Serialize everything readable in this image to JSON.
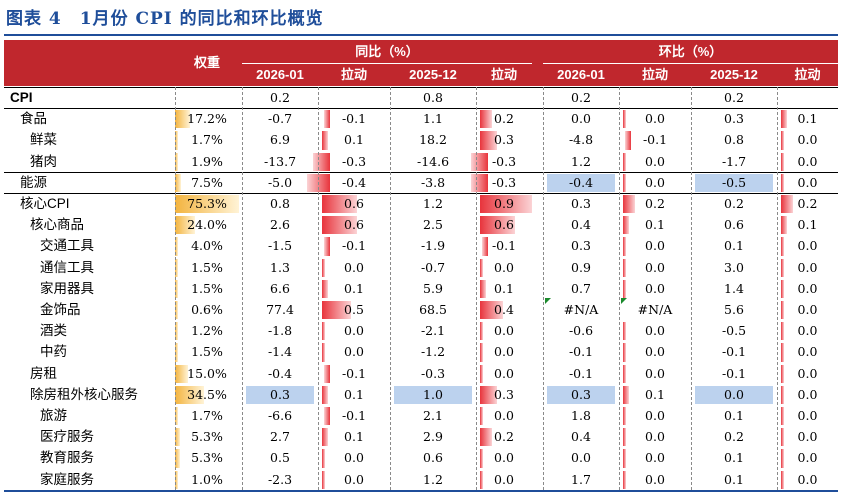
{
  "title": "图表 4　1月份 CPI 的同比和环比概览",
  "header": {
    "weight": "权重",
    "yoy_group": "同比（%）",
    "mom_group": "环比（%）",
    "period1": "2026-01",
    "period2": "2025-12",
    "pull": "拉动"
  },
  "rows": [
    {
      "label": "CPI",
      "weight": "",
      "yoy1": "0.2",
      "pull1": "",
      "yoy2": "0.8",
      "pull2": "",
      "mom1": "0.2",
      "mpull1": "",
      "mom2": "0.2",
      "mpull2": ""
    },
    {
      "label": "食品",
      "weight": "17.2%",
      "yoy1": "-0.7",
      "pull1": "-0.1",
      "yoy2": "1.1",
      "pull2": "0.2",
      "mom1": "0.0",
      "mpull1": "0.0",
      "mom2": "0.3",
      "mpull2": "0.1"
    },
    {
      "label": "鲜菜",
      "weight": "1.7%",
      "yoy1": "6.9",
      "pull1": "0.1",
      "yoy2": "18.2",
      "pull2": "0.3",
      "mom1": "-4.8",
      "mpull1": "-0.1",
      "mom2": "0.8",
      "mpull2": "0.0"
    },
    {
      "label": "猪肉",
      "weight": "1.9%",
      "yoy1": "-13.7",
      "pull1": "-0.3",
      "yoy2": "-14.6",
      "pull2": "-0.3",
      "mom1": "1.2",
      "mpull1": "0.0",
      "mom2": "-1.7",
      "mpull2": "0.0"
    },
    {
      "label": "能源",
      "weight": "7.5%",
      "yoy1": "-5.0",
      "pull1": "-0.4",
      "yoy2": "-3.8",
      "pull2": "-0.3",
      "mom1": "-0.4",
      "mpull1": "0.0",
      "mom2": "-0.5",
      "mpull2": "0.0"
    },
    {
      "label": "核心CPI",
      "weight": "75.3%",
      "yoy1": "0.8",
      "pull1": "0.6",
      "yoy2": "1.2",
      "pull2": "0.9",
      "mom1": "0.3",
      "mpull1": "0.2",
      "mom2": "0.2",
      "mpull2": "0.2"
    },
    {
      "label": "核心商品",
      "weight": "24.0%",
      "yoy1": "2.6",
      "pull1": "0.6",
      "yoy2": "2.5",
      "pull2": "0.6",
      "mom1": "0.4",
      "mpull1": "0.1",
      "mom2": "0.6",
      "mpull2": "0.1"
    },
    {
      "label": "交通工具",
      "weight": "4.0%",
      "yoy1": "-1.5",
      "pull1": "-0.1",
      "yoy2": "-1.9",
      "pull2": "-0.1",
      "mom1": "0.3",
      "mpull1": "0.0",
      "mom2": "0.1",
      "mpull2": "0.0"
    },
    {
      "label": "通信工具",
      "weight": "1.5%",
      "yoy1": "1.3",
      "pull1": "0.0",
      "yoy2": "-0.7",
      "pull2": "0.0",
      "mom1": "0.9",
      "mpull1": "0.0",
      "mom2": "3.0",
      "mpull2": "0.0"
    },
    {
      "label": "家用器具",
      "weight": "1.5%",
      "yoy1": "6.6",
      "pull1": "0.1",
      "yoy2": "5.9",
      "pull2": "0.1",
      "mom1": "0.7",
      "mpull1": "0.0",
      "mom2": "1.4",
      "mpull2": "0.0"
    },
    {
      "label": "金饰品",
      "weight": "0.6%",
      "yoy1": "77.4",
      "pull1": "0.5",
      "yoy2": "68.5",
      "pull2": "0.4",
      "mom1": "#N/A",
      "mpull1": "#N/A",
      "mom2": "5.6",
      "mpull2": "0.0"
    },
    {
      "label": "酒类",
      "weight": "1.2%",
      "yoy1": "-1.8",
      "pull1": "0.0",
      "yoy2": "-2.1",
      "pull2": "0.0",
      "mom1": "-0.6",
      "mpull1": "0.0",
      "mom2": "-0.5",
      "mpull2": "0.0"
    },
    {
      "label": "中药",
      "weight": "1.5%",
      "yoy1": "-1.4",
      "pull1": "0.0",
      "yoy2": "-1.2",
      "pull2": "0.0",
      "mom1": "-0.1",
      "mpull1": "0.0",
      "mom2": "-0.1",
      "mpull2": "0.0"
    },
    {
      "label": "房租",
      "weight": "15.0%",
      "yoy1": "-0.4",
      "pull1": "-0.1",
      "yoy2": "-0.3",
      "pull2": "0.0",
      "mom1": "-0.1",
      "mpull1": "0.0",
      "mom2": "-0.1",
      "mpull2": "0.0"
    },
    {
      "label": "除房租外核心服务",
      "weight": "34.5%",
      "yoy1": "0.3",
      "pull1": "0.1",
      "yoy2": "1.0",
      "pull2": "0.3",
      "mom1": "0.3",
      "mpull1": "0.1",
      "mom2": "0.0",
      "mpull2": "0.0"
    },
    {
      "label": "旅游",
      "weight": "1.7%",
      "yoy1": "-6.6",
      "pull1": "-0.1",
      "yoy2": "2.1",
      "pull2": "0.0",
      "mom1": "1.8",
      "mpull1": "0.0",
      "mom2": "0.1",
      "mpull2": "0.0"
    },
    {
      "label": "医疗服务",
      "weight": "5.3%",
      "yoy1": "2.7",
      "pull1": "0.1",
      "yoy2": "2.9",
      "pull2": "0.2",
      "mom1": "0.4",
      "mpull1": "0.0",
      "mom2": "0.2",
      "mpull2": "0.0"
    },
    {
      "label": "教育服务",
      "weight": "5.3%",
      "yoy1": "0.5",
      "pull1": "0.0",
      "yoy2": "0.6",
      "pull2": "0.0",
      "mom1": "0.0",
      "mpull1": "0.0",
      "mom2": "0.1",
      "mpull2": "0.0"
    },
    {
      "label": "家庭服务",
      "weight": "1.0%",
      "yoy1": "-2.3",
      "pull1": "0.0",
      "yoy2": "1.2",
      "pull2": "0.0",
      "mom1": "1.7",
      "mpull1": "0.0",
      "mom2": "0.1",
      "mpull2": "0.0"
    }
  ],
  "colors": {
    "accent_blue": "#1f4e9a",
    "header_red": "#c0272d",
    "weight_bar": "#f3b43f",
    "pull_bar": "#e8343c",
    "highlight_blue": "#bcd2ee"
  }
}
